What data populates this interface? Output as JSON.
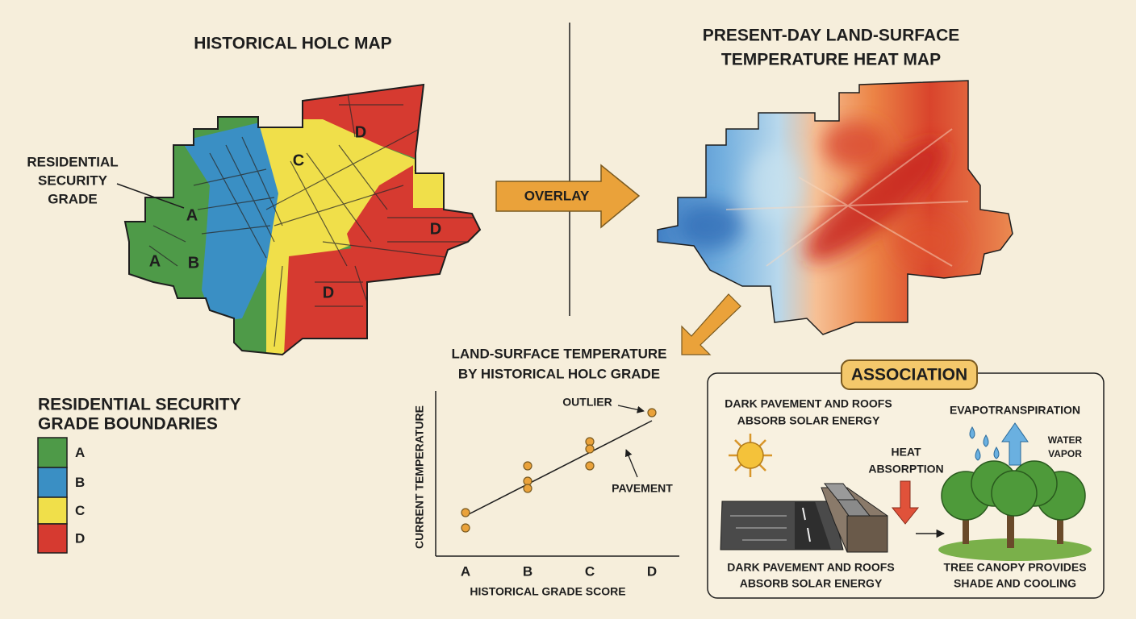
{
  "holc_map": {
    "title": "HISTORICAL HOLC MAP",
    "callout": [
      "RESIDENTIAL",
      "SECURITY",
      "GRADE"
    ],
    "zone_labels": [
      "A",
      "A",
      "B",
      "C",
      "D",
      "D",
      "D"
    ]
  },
  "legend": {
    "title": [
      "RESIDENTIAL SECURITY",
      "GRADE BOUNDARIES"
    ],
    "items": [
      {
        "label": "A",
        "color": "#4e9a48"
      },
      {
        "label": "B",
        "color": "#3a8fc4"
      },
      {
        "label": "C",
        "color": "#f0df4a"
      },
      {
        "label": "D",
        "color": "#d63a30"
      }
    ]
  },
  "overlay_label": "OVERLAY",
  "heat_map": {
    "title": [
      "PRESENT-DAY LAND-SURFACE",
      "TEMPERATURE HEAT MAP"
    ]
  },
  "scatter": {
    "title": [
      "LAND-SURFACE TEMPERATURE",
      "BY HISTORICAL HOLC GRADE"
    ],
    "y_label": "CURRENT TEMPERATURE",
    "x_label": "HISTORICAL GRADE SCORE",
    "categories": [
      "A",
      "B",
      "C",
      "D"
    ],
    "annotations": [
      "OUTLIER",
      "PAVEMENT"
    ]
  },
  "association": {
    "title": "ASSOCIATION",
    "top_text": [
      "DARK PAVEMENT AND ROOFS",
      "ABSORB SOLAR ENERGY"
    ],
    "heat_label": [
      "HEAT",
      "ABSORPTION"
    ],
    "evapo_label": "EVAPOTRANSPIRATION",
    "vapor_label": [
      "WATER",
      "VAPOR"
    ],
    "bottom_left": [
      "DARK PAVEMENT AND ROOFS",
      "ABSORB SOLAR ENERGY"
    ],
    "bottom_right": [
      "TREE CANOPY PROVIDES",
      "SHADE AND COOLING"
    ]
  }
}
